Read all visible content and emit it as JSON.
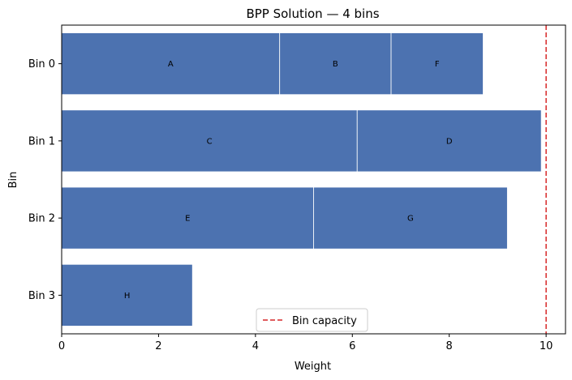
{
  "chart_data": {
    "type": "bar",
    "orientation": "horizontal",
    "stacked": true,
    "title": "BPP Solution — 4 bins",
    "xlabel": "Weight",
    "ylabel": "Bin",
    "xlim": [
      0,
      10.4
    ],
    "xticks": [
      0,
      2,
      4,
      6,
      8,
      10
    ],
    "grid": false,
    "legend_placement": "bottom-center",
    "bar_color": "#4c72b0",
    "capacity": 10,
    "capacity_label": "Bin capacity",
    "capacity_color": "#d62728",
    "bins": [
      {
        "label": "Bin 0",
        "items": [
          {
            "name": "A",
            "weight": 4.5
          },
          {
            "name": "B",
            "weight": 2.3
          },
          {
            "name": "F",
            "weight": 1.9
          }
        ]
      },
      {
        "label": "Bin 1",
        "items": [
          {
            "name": "C",
            "weight": 6.1
          },
          {
            "name": "D",
            "weight": 3.8
          }
        ]
      },
      {
        "label": "Bin 2",
        "items": [
          {
            "name": "E",
            "weight": 5.2
          },
          {
            "name": "G",
            "weight": 4.0
          }
        ]
      },
      {
        "label": "Bin 3",
        "items": [
          {
            "name": "H",
            "weight": 2.7
          }
        ]
      }
    ]
  }
}
